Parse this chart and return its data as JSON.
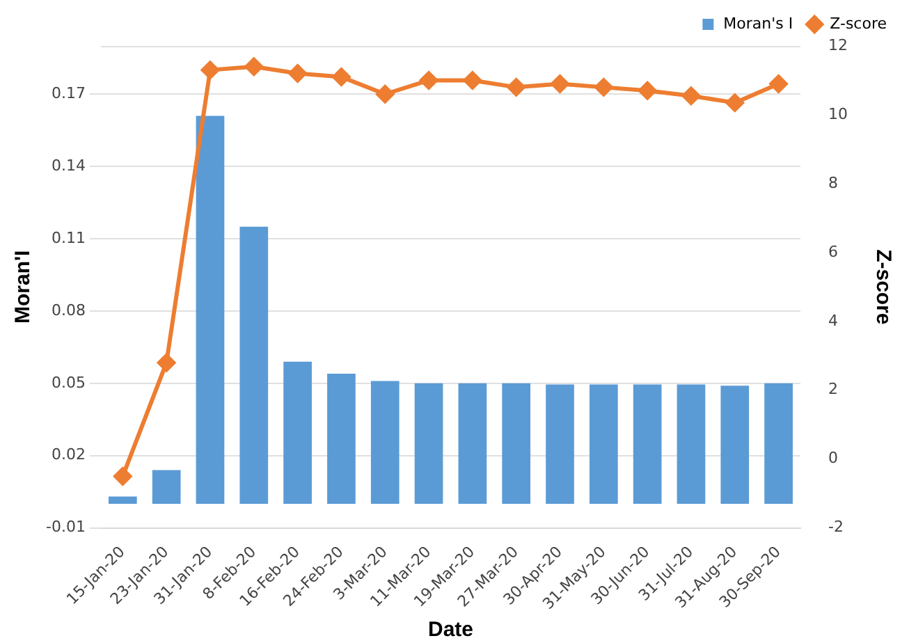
{
  "chart_data": {
    "type": "bar",
    "xlabel": "Date",
    "ylabel": "Moran'I",
    "y2label": "Z-score",
    "categories": [
      "15-Jan-20",
      "23-Jan-20",
      "31-Jan-20",
      "8-Feb-20",
      "16-Feb-20",
      "24-Feb-20",
      "3-Mar-20",
      "11-Mar-20",
      "19-Mar-20",
      "27-Mar-20",
      "30-Apr-20",
      "31-May-20",
      "30-Jun-20",
      "31-Jul-20",
      "31-Aug-20",
      "30-Sep-20"
    ],
    "series": [
      {
        "name": "Moran's I",
        "color": "#5b9bd5",
        "values": [
          0.003,
          0.014,
          0.161,
          0.115,
          0.059,
          0.054,
          0.051,
          0.05,
          0.05,
          0.05,
          0.0495,
          0.0495,
          0.0495,
          0.0495,
          0.049,
          0.05
        ]
      },
      {
        "name": "Z-score",
        "type": "line",
        "axis": "y2",
        "color": "#ed7d31",
        "values": [
          -0.5,
          2.8,
          11.3,
          11.4,
          11.2,
          11.1,
          10.6,
          11.0,
          11.0,
          10.8,
          10.9,
          10.8,
          10.7,
          10.55,
          10.35,
          10.9
        ]
      }
    ],
    "ylim": [
      -0.01,
      0.19
    ],
    "yticks": [
      -0.01,
      0.02,
      0.05,
      0.08,
      0.11,
      0.14,
      0.17
    ],
    "y2lim": [
      -2,
      12
    ],
    "y2ticks": [
      -2,
      0,
      2,
      4,
      6,
      8,
      10,
      12
    ],
    "grid": "y",
    "legend": "top right",
    "marker": "diamond",
    "line_style": "solid"
  }
}
